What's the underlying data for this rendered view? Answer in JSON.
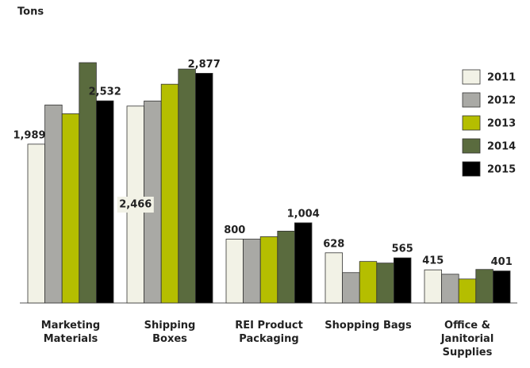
{
  "chart_data": {
    "type": "bar",
    "title": "Tons",
    "categories": [
      "Marketing Materials",
      "Shipping Boxes",
      "REI Product Packaging",
      "Shopping Bags",
      "Office & Janitorial Supplies"
    ],
    "series": [
      {
        "name": "2011",
        "color": "#f2f2e6",
        "values": [
          1989,
          2466,
          800,
          628,
          415
        ],
        "value_labels": [
          "1,989",
          "2,466",
          "800",
          "628",
          "415"
        ]
      },
      {
        "name": "2012",
        "color": "#a9a9a5",
        "values": [
          2480,
          2530,
          800,
          380,
          360
        ]
      },
      {
        "name": "2013",
        "color": "#b5be00",
        "values": [
          2370,
          2740,
          830,
          520,
          300
        ]
      },
      {
        "name": "2014",
        "color": "#5a6b3e",
        "values": [
          3010,
          2930,
          900,
          500,
          420
        ]
      },
      {
        "name": "2015",
        "color": "#000000",
        "values": [
          2532,
          2877,
          1004,
          565,
          401
        ],
        "value_labels": [
          "2,532",
          "2,877",
          "1,004",
          "565",
          "401"
        ]
      }
    ],
    "legend": "right"
  }
}
